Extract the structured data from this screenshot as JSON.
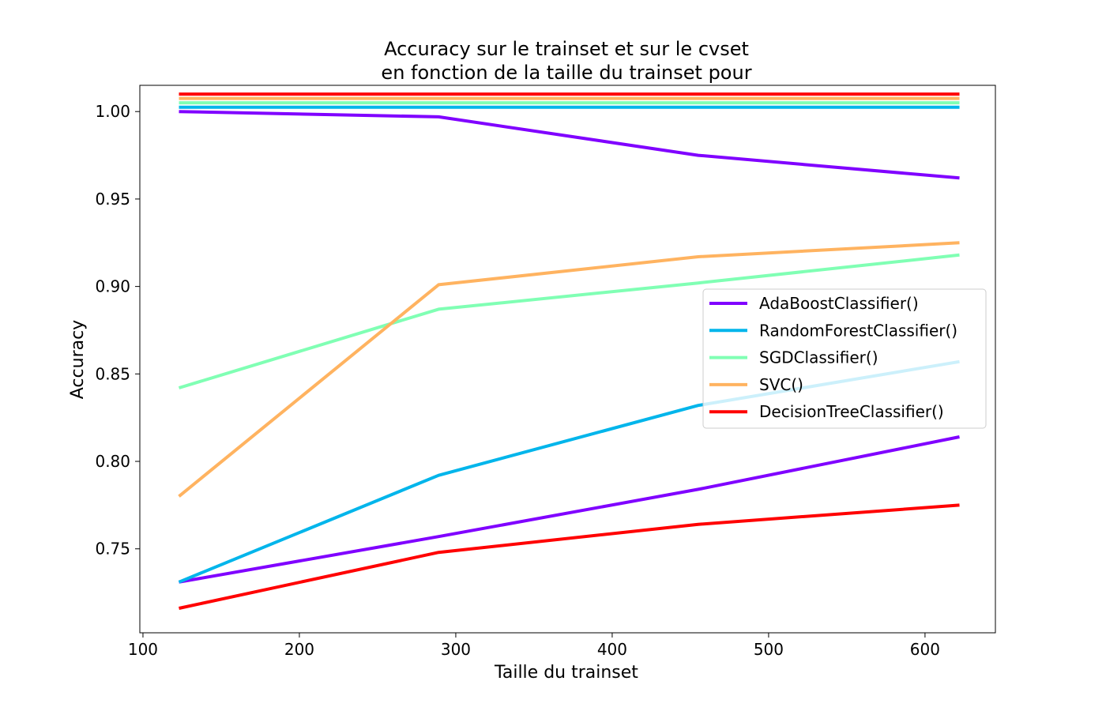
{
  "chart_data": {
    "type": "line",
    "title": [
      "Accuracy sur le trainset et sur le cvset",
      "en fonction de la taille du trainset pour"
    ],
    "xlabel": "Taille du trainset",
    "ylabel": "Accuracy",
    "xlim": [
      98,
      645
    ],
    "ylim": [
      0.702,
      1.015
    ],
    "xticks": [
      100,
      200,
      300,
      400,
      500,
      600
    ],
    "yticks": [
      0.75,
      0.8,
      0.85,
      0.9,
      0.95,
      1.0
    ],
    "ytick_labels": [
      "0.75",
      "0.80",
      "0.85",
      "0.90",
      "0.95",
      "1.00"
    ],
    "x": [
      123,
      289,
      455,
      622
    ],
    "grid": false,
    "legend_position": "center-right",
    "series": [
      {
        "name": "AdaBoostClassifier()",
        "color": "#8000ff",
        "train": [
          1.0,
          0.997,
          0.975,
          0.962
        ],
        "cv": [
          0.731,
          0.757,
          0.784,
          0.814
        ]
      },
      {
        "name": "RandomForestClassifier()",
        "color": "#00b5eb",
        "train": [
          1.0025,
          1.0025,
          1.0025,
          1.0025
        ],
        "cv": [
          0.731,
          0.792,
          0.832,
          0.857
        ]
      },
      {
        "name": "SGDClassifier()",
        "color": "#80ffb4",
        "train": [
          1.005,
          1.005,
          1.005,
          1.005
        ],
        "cv": [
          0.842,
          0.887,
          0.902,
          0.918
        ]
      },
      {
        "name": "SVC()",
        "color": "#ffb360",
        "train": [
          1.0075,
          1.0075,
          1.0075,
          1.0075
        ],
        "cv": [
          0.78,
          0.901,
          0.917,
          0.925
        ]
      },
      {
        "name": "DecisionTreeClassifier()",
        "color": "#ff0000",
        "train": [
          1.01,
          1.01,
          1.01,
          1.01
        ],
        "cv": [
          0.716,
          0.748,
          0.764,
          0.775
        ]
      }
    ]
  }
}
